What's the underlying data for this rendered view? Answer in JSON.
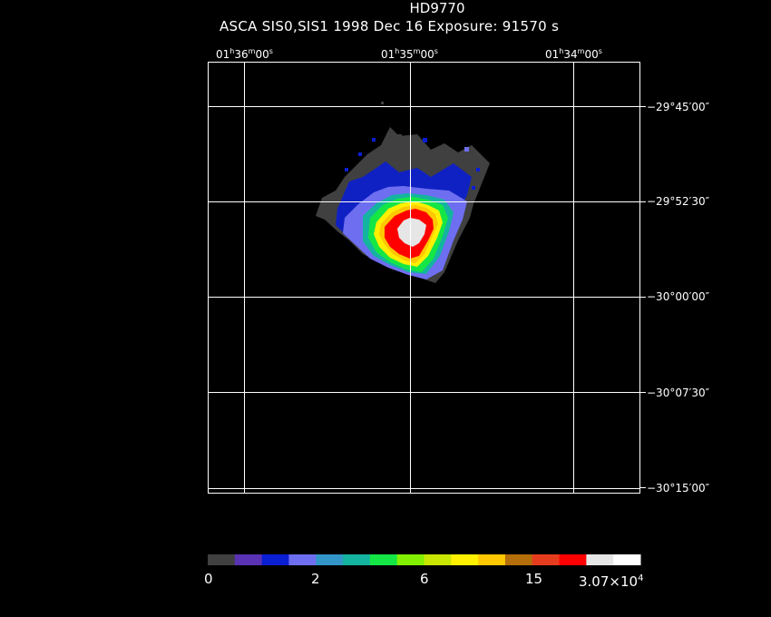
{
  "header": {
    "title": "HD9770",
    "subtitle": "ASCA SIS0,SIS1    1998 Dec 16    Exposure: 91570 s"
  },
  "ra_axis": {
    "labels": [
      {
        "h": "01",
        "m": "36",
        "s": "00"
      },
      {
        "h": "01",
        "m": "35",
        "s": "00"
      },
      {
        "h": "01",
        "m": "34",
        "s": "00"
      }
    ]
  },
  "dec_axis": {
    "labels": [
      "−29°45′00″",
      "−29°52′30″",
      "−30°00′00″",
      "−30°07′30″",
      "−30°15′00″"
    ]
  },
  "colorbar": {
    "colors": [
      "#404040",
      "#5a32b4",
      "#0a1ed2",
      "#6e6ef0",
      "#3296c8",
      "#14b4a0",
      "#14e646",
      "#82f000",
      "#c8e600",
      "#fff000",
      "#ffc800",
      "#b46e0a",
      "#e63c1e",
      "#ff0000",
      "#e6e6e6",
      "#ffffff"
    ],
    "labels": [
      "0",
      "2",
      "6",
      "15",
      "3.07×10"
    ],
    "exponent": "4"
  },
  "image_colors": {
    "gray": "#404040",
    "blue": "#0a1ed2",
    "lightblue": "#6e6ef0",
    "teal": "#14b4a0",
    "green": "#14e646",
    "yellow": "#fff000",
    "orange": "#ffc800",
    "red": "#ff0000",
    "white": "#e6e6e6"
  }
}
